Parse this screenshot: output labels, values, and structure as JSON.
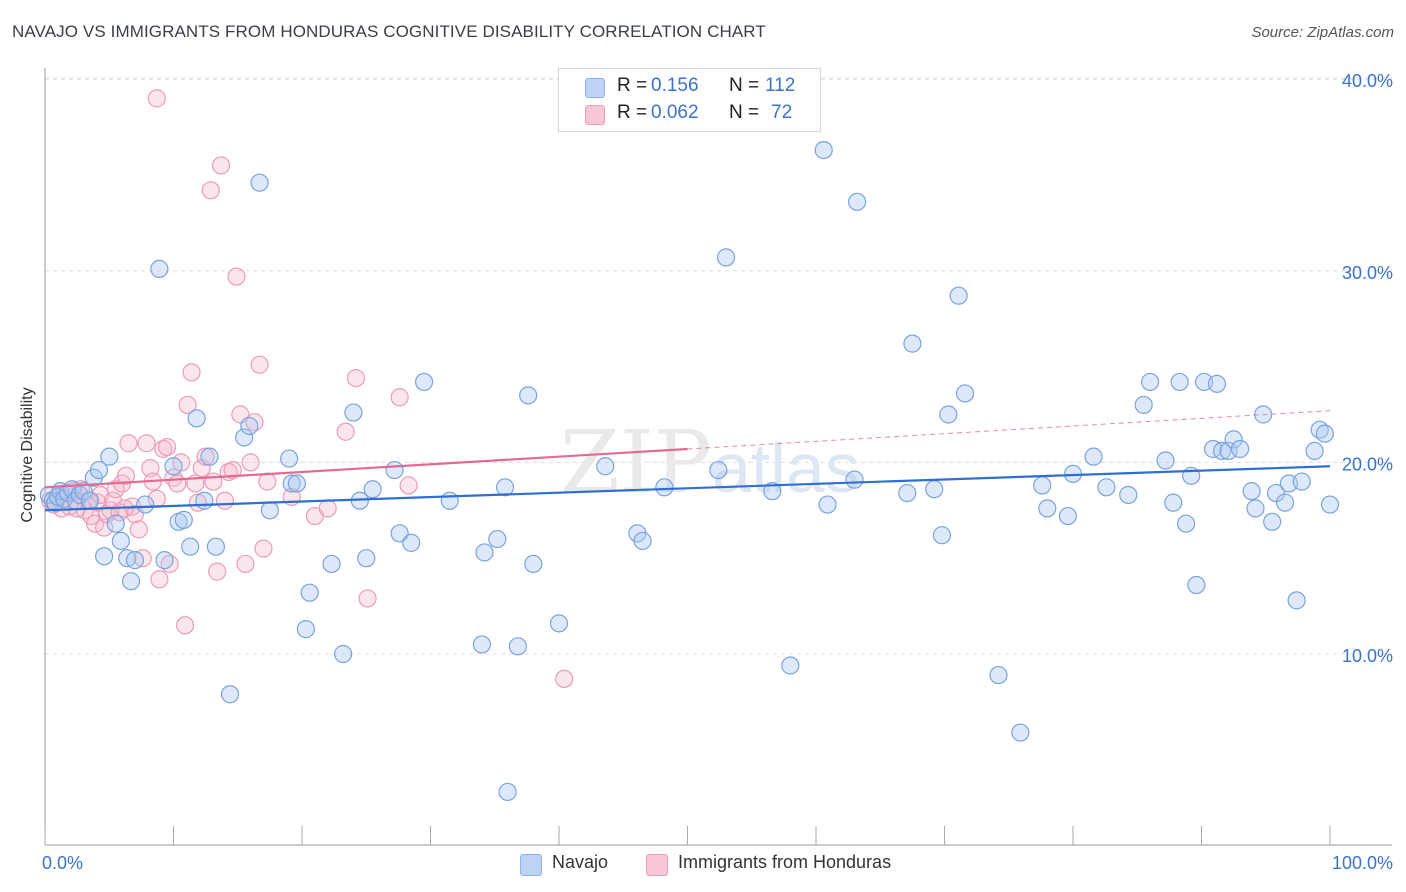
{
  "title": "NAVAJO VS IMMIGRANTS FROM HONDURAS COGNITIVE DISABILITY CORRELATION CHART",
  "source": "Source: ZipAtlas.com",
  "watermark": "ZIPatlas",
  "legend": {
    "r_label": "R =",
    "n_label": "N =",
    "rows": [
      {
        "r": "0.156",
        "n": "112"
      },
      {
        "r": "0.062",
        "n": "72"
      }
    ]
  },
  "chart_data": {
    "type": "scatter",
    "xlabel": "",
    "ylabel": "Cognitive Disability",
    "xlim": [
      0,
      100
    ],
    "ylim": [
      0,
      42
    ],
    "x_tick_labels": [
      "0.0%",
      "100.0%"
    ],
    "y_ticks": [
      10,
      20,
      30,
      40
    ],
    "y_tick_labels": [
      "10.0%",
      "20.0%",
      "30.0%",
      "40.0%"
    ],
    "colors": {
      "navajo": "#a9c7f2",
      "navajo_line": "#2e6fd0",
      "honduras": "#f5b6ca",
      "honduras_line": "#e46a93"
    },
    "series": [
      {
        "name": "Navajo",
        "trend": {
          "x0": 0,
          "y0": 17.5,
          "x1": 100,
          "y1": 19.8,
          "dashed_from": null
        },
        "points": [
          [
            0.3,
            18.3
          ],
          [
            0.6,
            18.0
          ],
          [
            0.8,
            17.9
          ],
          [
            1.0,
            18.2
          ],
          [
            1.2,
            18.5
          ],
          [
            1.5,
            18.1
          ],
          [
            1.8,
            18.4
          ],
          [
            2.1,
            18.6
          ],
          [
            2.4,
            18.0
          ],
          [
            2.7,
            18.3
          ],
          [
            3.0,
            18.5
          ],
          [
            3.5,
            18.0
          ],
          [
            3.8,
            19.2
          ],
          [
            4.2,
            19.6
          ],
          [
            4.6,
            15.1
          ],
          [
            5.0,
            20.3
          ],
          [
            5.5,
            16.8
          ],
          [
            5.9,
            15.9
          ],
          [
            6.4,
            15.0
          ],
          [
            6.7,
            13.8
          ],
          [
            7.0,
            14.9
          ],
          [
            7.8,
            17.8
          ],
          [
            8.9,
            30.1
          ],
          [
            9.3,
            14.9
          ],
          [
            10.0,
            19.8
          ],
          [
            10.4,
            16.9
          ],
          [
            10.8,
            17.0
          ],
          [
            11.3,
            15.6
          ],
          [
            11.8,
            22.3
          ],
          [
            12.4,
            18.0
          ],
          [
            12.8,
            20.3
          ],
          [
            13.3,
            15.6
          ],
          [
            14.4,
            7.9
          ],
          [
            15.5,
            21.3
          ],
          [
            15.9,
            21.9
          ],
          [
            16.7,
            34.6
          ],
          [
            17.5,
            17.5
          ],
          [
            19.2,
            18.9
          ],
          [
            19.0,
            20.2
          ],
          [
            19.6,
            18.9
          ],
          [
            20.3,
            11.3
          ],
          [
            20.6,
            13.2
          ],
          [
            22.3,
            14.7
          ],
          [
            23.2,
            10.0
          ],
          [
            24.0,
            22.6
          ],
          [
            24.5,
            18.0
          ],
          [
            25.0,
            15.0
          ],
          [
            25.5,
            18.6
          ],
          [
            27.2,
            19.6
          ],
          [
            27.6,
            16.3
          ],
          [
            28.5,
            15.8
          ],
          [
            29.5,
            24.2
          ],
          [
            31.5,
            18.0
          ],
          [
            34.0,
            10.5
          ],
          [
            34.2,
            15.3
          ],
          [
            35.2,
            16.0
          ],
          [
            35.8,
            18.7
          ],
          [
            36.0,
            2.8
          ],
          [
            36.8,
            10.4
          ],
          [
            37.6,
            23.5
          ],
          [
            38.0,
            14.7
          ],
          [
            40.0,
            11.6
          ],
          [
            43.6,
            19.8
          ],
          [
            46.1,
            16.3
          ],
          [
            46.5,
            15.9
          ],
          [
            48.2,
            18.7
          ],
          [
            52.4,
            19.6
          ],
          [
            53.0,
            30.7
          ],
          [
            56.6,
            18.5
          ],
          [
            58.0,
            9.4
          ],
          [
            60.6,
            36.3
          ],
          [
            60.9,
            17.8
          ],
          [
            63.0,
            19.1
          ],
          [
            63.2,
            33.6
          ],
          [
            67.1,
            18.4
          ],
          [
            67.5,
            26.2
          ],
          [
            69.2,
            18.6
          ],
          [
            69.8,
            16.2
          ],
          [
            70.3,
            22.5
          ],
          [
            71.1,
            28.7
          ],
          [
            71.6,
            23.6
          ],
          [
            74.2,
            8.9
          ],
          [
            75.9,
            5.9
          ],
          [
            77.6,
            18.8
          ],
          [
            78.0,
            17.6
          ],
          [
            79.6,
            17.2
          ],
          [
            80.0,
            19.4
          ],
          [
            81.6,
            20.3
          ],
          [
            82.6,
            18.7
          ],
          [
            84.3,
            18.3
          ],
          [
            85.5,
            23.0
          ],
          [
            86.0,
            24.2
          ],
          [
            87.2,
            20.1
          ],
          [
            87.8,
            17.9
          ],
          [
            88.3,
            24.2
          ],
          [
            88.8,
            16.8
          ],
          [
            89.2,
            19.3
          ],
          [
            89.6,
            13.6
          ],
          [
            90.2,
            24.2
          ],
          [
            90.9,
            20.7
          ],
          [
            91.2,
            24.1
          ],
          [
            91.6,
            20.6
          ],
          [
            92.1,
            20.6
          ],
          [
            92.5,
            21.2
          ],
          [
            93.0,
            20.7
          ],
          [
            93.9,
            18.5
          ],
          [
            94.2,
            17.6
          ],
          [
            94.8,
            22.5
          ],
          [
            95.5,
            16.9
          ],
          [
            95.8,
            18.4
          ],
          [
            96.5,
            17.9
          ],
          [
            96.8,
            18.9
          ],
          [
            97.4,
            12.8
          ],
          [
            97.8,
            19.0
          ],
          [
            98.8,
            20.6
          ],
          [
            99.2,
            21.7
          ],
          [
            99.6,
            21.5
          ],
          [
            100.0,
            17.8
          ]
        ]
      },
      {
        "name": "Immigrants from Honduras",
        "trend": {
          "x0": 0,
          "y0": 18.7,
          "x1": 100,
          "y1": 22.7,
          "dashed_from": 50
        },
        "points": [
          [
            0.4,
            18.0
          ],
          [
            0.7,
            17.8
          ],
          [
            1.0,
            18.2
          ],
          [
            1.3,
            17.6
          ],
          [
            1.6,
            18.4
          ],
          [
            1.9,
            17.7
          ],
          [
            2.2,
            18.5
          ],
          [
            2.5,
            17.6
          ],
          [
            2.8,
            18.6
          ],
          [
            3.1,
            17.5
          ],
          [
            3.4,
            18.0
          ],
          [
            3.6,
            17.2
          ],
          [
            3.9,
            16.8
          ],
          [
            4.1,
            17.9
          ],
          [
            4.3,
            18.3
          ],
          [
            4.6,
            16.6
          ],
          [
            4.8,
            17.3
          ],
          [
            5.1,
            17.5
          ],
          [
            5.3,
            18.0
          ],
          [
            5.5,
            18.6
          ],
          [
            5.8,
            17.4
          ],
          [
            6.0,
            18.9
          ],
          [
            6.3,
            19.3
          ],
          [
            6.5,
            21.0
          ],
          [
            6.8,
            17.7
          ],
          [
            7.0,
            17.3
          ],
          [
            7.3,
            16.5
          ],
          [
            7.6,
            15.0
          ],
          [
            7.9,
            21.0
          ],
          [
            8.2,
            19.7
          ],
          [
            8.4,
            19.0
          ],
          [
            8.7,
            18.1
          ],
          [
            8.9,
            13.9
          ],
          [
            9.2,
            20.7
          ],
          [
            9.5,
            20.8
          ],
          [
            9.7,
            14.7
          ],
          [
            10.0,
            19.2
          ],
          [
            10.3,
            18.9
          ],
          [
            10.6,
            20.0
          ],
          [
            10.9,
            11.5
          ],
          [
            11.1,
            23.0
          ],
          [
            11.4,
            24.7
          ],
          [
            11.7,
            18.9
          ],
          [
            11.9,
            17.9
          ],
          [
            12.2,
            19.7
          ],
          [
            12.5,
            20.3
          ],
          [
            12.9,
            34.2
          ],
          [
            13.1,
            19.0
          ],
          [
            13.4,
            14.3
          ],
          [
            13.7,
            35.5
          ],
          [
            14.0,
            18.0
          ],
          [
            14.3,
            19.5
          ],
          [
            14.6,
            19.6
          ],
          [
            14.9,
            29.7
          ],
          [
            15.2,
            22.5
          ],
          [
            15.6,
            14.7
          ],
          [
            16.0,
            20.0
          ],
          [
            16.3,
            22.1
          ],
          [
            16.7,
            25.1
          ],
          [
            17.0,
            15.5
          ],
          [
            17.3,
            19.0
          ],
          [
            8.7,
            39.0
          ],
          [
            19.2,
            18.2
          ],
          [
            21.0,
            17.2
          ],
          [
            22.0,
            17.6
          ],
          [
            23.4,
            21.6
          ],
          [
            24.2,
            24.4
          ],
          [
            25.1,
            12.9
          ],
          [
            27.6,
            23.4
          ],
          [
            28.3,
            18.8
          ],
          [
            40.4,
            8.7
          ],
          [
            6.2,
            17.6
          ]
        ]
      }
    ]
  },
  "bottom_legend": [
    "Navajo",
    "Immigrants from Honduras"
  ]
}
